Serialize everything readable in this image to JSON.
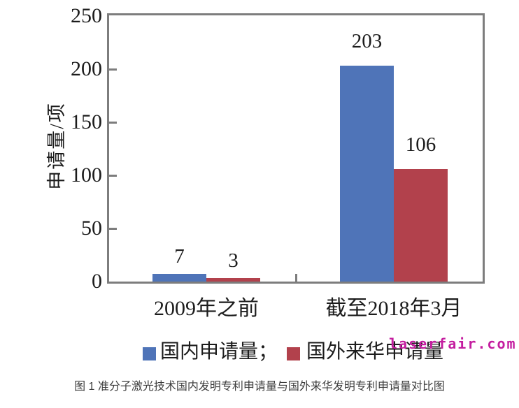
{
  "watermark": {
    "text": "laserfair.com",
    "color": "#c41d9f"
  },
  "caption": "图 1 准分子激光技术国内发明专利申请量与国外来华发明专利申请量对比图",
  "chart_data": {
    "type": "bar",
    "title": "",
    "xlabel": "",
    "ylabel": "申请量/项",
    "categories": [
      "2009年之前",
      "截至2018年3月"
    ],
    "series": [
      {
        "name": "国内申请量",
        "color": "#4f74b8",
        "values": [
          7,
          203
        ]
      },
      {
        "name": "国外来华申请量",
        "color": "#b2414c",
        "values": [
          3,
          106
        ]
      }
    ],
    "ylim": [
      0,
      250
    ],
    "yticks": [
      0,
      50,
      100,
      150,
      200,
      250
    ],
    "grid": false,
    "value_labels": true,
    "legend_position": "bottom",
    "axis_color": "#7d7d7d"
  },
  "legend": {
    "items": [
      {
        "label": "国内申请量；",
        "color": "#4f74b8"
      },
      {
        "label": "国外来华申请量",
        "color": "#b2414c"
      }
    ]
  }
}
